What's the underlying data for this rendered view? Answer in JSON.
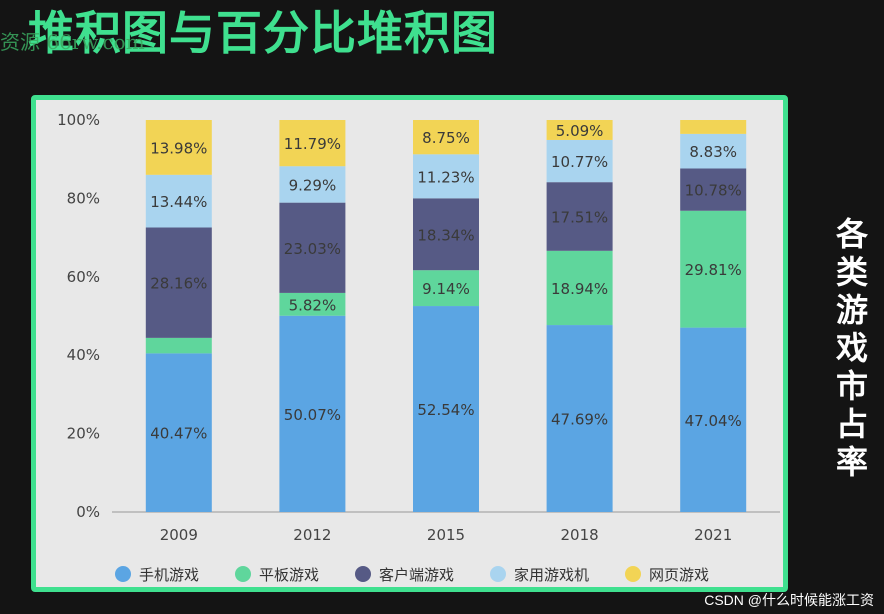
{
  "slide_title": "堆积图与百分比堆积图",
  "watermark_left": "资源 66rw.com",
  "side_label": "各类游戏市占率",
  "credit": "CSDN @什么时候能涨工资",
  "chart_data": {
    "type": "bar",
    "stacked": "percent",
    "title": "",
    "xlabel": "",
    "ylabel": "",
    "ylim": [
      0,
      100
    ],
    "yticks": [
      "0%",
      "20%",
      "40%",
      "60%",
      "80%",
      "100%"
    ],
    "categories": [
      "2009",
      "2012",
      "2015",
      "2018",
      "2021"
    ],
    "legend_position": "bottom",
    "grid": false,
    "series": [
      {
        "name": "手机游戏",
        "color": "#5ba5e3",
        "values": [
          40.47,
          50.07,
          52.54,
          47.69,
          47.04
        ],
        "labels": [
          "40.47%",
          "50.07%",
          "52.54%",
          "47.69%",
          "47.04%"
        ]
      },
      {
        "name": "平板游戏",
        "color": "#5fd69c",
        "values": [
          3.95,
          5.82,
          9.14,
          18.94,
          29.81
        ],
        "labels": [
          "",
          "5.82%",
          "9.14%",
          "18.94%",
          "29.81%"
        ]
      },
      {
        "name": "客户端游戏",
        "color": "#565a85",
        "values": [
          28.16,
          23.03,
          18.34,
          17.51,
          10.78
        ],
        "labels": [
          "28.16%",
          "23.03%",
          "18.34%",
          "17.51%",
          "10.78%"
        ]
      },
      {
        "name": "家用游戏机",
        "color": "#a9d4ef",
        "values": [
          13.44,
          9.29,
          11.23,
          10.77,
          8.83
        ],
        "labels": [
          "13.44%",
          "9.29%",
          "11.23%",
          "10.77%",
          "8.83%"
        ]
      },
      {
        "name": "网页游戏",
        "color": "#f2d455",
        "values": [
          13.98,
          11.79,
          8.75,
          5.09,
          3.54
        ],
        "labels": [
          "13.98%",
          "11.79%",
          "8.75%",
          "5.09%",
          ""
        ]
      }
    ]
  }
}
